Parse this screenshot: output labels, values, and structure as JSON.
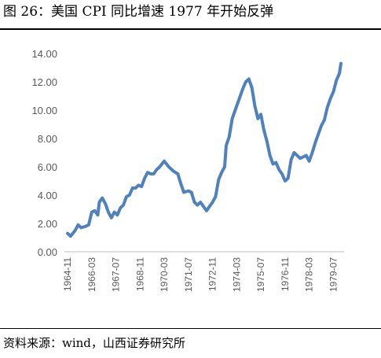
{
  "header": {
    "title": "图 26：美国 CPI 同比增速 1977 年开始反弹"
  },
  "footer": {
    "source": "资料来源：wind，山西证券研究所"
  },
  "colors": {
    "line": "#4f81bd",
    "axis": "#bfbfbf",
    "tick_text": "#595959"
  },
  "chart_data": {
    "type": "line",
    "title": "",
    "xlabel": "",
    "ylabel": "",
    "ylim": [
      0,
      14
    ],
    "y_ticks": [
      "0.00",
      "2.00",
      "4.00",
      "6.00",
      "8.00",
      "10.00",
      "12.00",
      "14.00"
    ],
    "x_ticks": [
      "1964-11",
      "1966-03",
      "1967-07",
      "1968-11",
      "1970-03",
      "1971-07",
      "1972-11",
      "1974-03",
      "1975-07",
      "1976-11",
      "1978-03",
      "1979-07"
    ],
    "grid": false,
    "legend": "none",
    "series": [
      {
        "points": [
          [
            "1964-11",
            1.3
          ],
          [
            "1965-01",
            1.1
          ],
          [
            "1965-04",
            1.5
          ],
          [
            "1965-06",
            1.9
          ],
          [
            "1965-08",
            1.7
          ],
          [
            "1965-11",
            1.8
          ],
          [
            "1966-01",
            1.9
          ],
          [
            "1966-03",
            2.8
          ],
          [
            "1966-05",
            2.9
          ],
          [
            "1966-07",
            2.6
          ],
          [
            "1966-08",
            3.5
          ],
          [
            "1966-10",
            3.8
          ],
          [
            "1966-12",
            3.4
          ],
          [
            "1967-02",
            2.8
          ],
          [
            "1967-04",
            2.4
          ],
          [
            "1967-06",
            2.8
          ],
          [
            "1967-08",
            2.6
          ],
          [
            "1967-10",
            3.1
          ],
          [
            "1967-12",
            3.3
          ],
          [
            "1968-02",
            3.9
          ],
          [
            "1968-04",
            4.0
          ],
          [
            "1968-06",
            4.5
          ],
          [
            "1968-08",
            4.5
          ],
          [
            "1968-10",
            4.7
          ],
          [
            "1968-12",
            4.6
          ],
          [
            "1969-02",
            5.2
          ],
          [
            "1969-04",
            5.6
          ],
          [
            "1969-06",
            5.5
          ],
          [
            "1969-08",
            5.5
          ],
          [
            "1969-10",
            5.8
          ],
          [
            "1969-12",
            6.0
          ],
          [
            "1970-03",
            6.4
          ],
          [
            "1970-06",
            6.0
          ],
          [
            "1970-09",
            5.7
          ],
          [
            "1970-12",
            5.5
          ],
          [
            "1971-02",
            4.8
          ],
          [
            "1971-04",
            4.2
          ],
          [
            "1971-07",
            4.3
          ],
          [
            "1971-09",
            4.2
          ],
          [
            "1971-11",
            3.5
          ],
          [
            "1972-01",
            3.3
          ],
          [
            "1972-03",
            3.5
          ],
          [
            "1972-05",
            3.2
          ],
          [
            "1972-07",
            2.9
          ],
          [
            "1972-09",
            3.2
          ],
          [
            "1972-11",
            3.5
          ],
          [
            "1973-01",
            3.9
          ],
          [
            "1973-03",
            5.1
          ],
          [
            "1973-05",
            5.6
          ],
          [
            "1973-07",
            6.0
          ],
          [
            "1973-08",
            7.5
          ],
          [
            "1973-10",
            8.1
          ],
          [
            "1973-12",
            9.4
          ],
          [
            "1974-03",
            10.3
          ],
          [
            "1974-05",
            10.9
          ],
          [
            "1974-07",
            11.5
          ],
          [
            "1974-09",
            12.0
          ],
          [
            "1974-11",
            12.2
          ],
          [
            "1975-01",
            11.6
          ],
          [
            "1975-03",
            10.3
          ],
          [
            "1975-05",
            9.4
          ],
          [
            "1975-07",
            9.7
          ],
          [
            "1975-09",
            8.6
          ],
          [
            "1975-11",
            7.8
          ],
          [
            "1976-01",
            6.8
          ],
          [
            "1976-03",
            6.2
          ],
          [
            "1976-05",
            6.3
          ],
          [
            "1976-07",
            5.8
          ],
          [
            "1976-09",
            5.5
          ],
          [
            "1976-11",
            5.0
          ],
          [
            "1977-01",
            5.2
          ],
          [
            "1977-03",
            6.5
          ],
          [
            "1977-05",
            7.0
          ],
          [
            "1977-07",
            6.8
          ],
          [
            "1977-09",
            6.6
          ],
          [
            "1977-11",
            6.7
          ],
          [
            "1978-01",
            6.8
          ],
          [
            "1978-03",
            6.4
          ],
          [
            "1978-05",
            7.0
          ],
          [
            "1978-07",
            7.7
          ],
          [
            "1978-09",
            8.3
          ],
          [
            "1978-11",
            8.9
          ],
          [
            "1979-01",
            9.3
          ],
          [
            "1979-03",
            10.2
          ],
          [
            "1979-05",
            10.8
          ],
          [
            "1979-07",
            11.3
          ],
          [
            "1979-09",
            12.1
          ],
          [
            "1979-11",
            12.6
          ],
          [
            "1979-12",
            13.3
          ]
        ]
      }
    ]
  }
}
